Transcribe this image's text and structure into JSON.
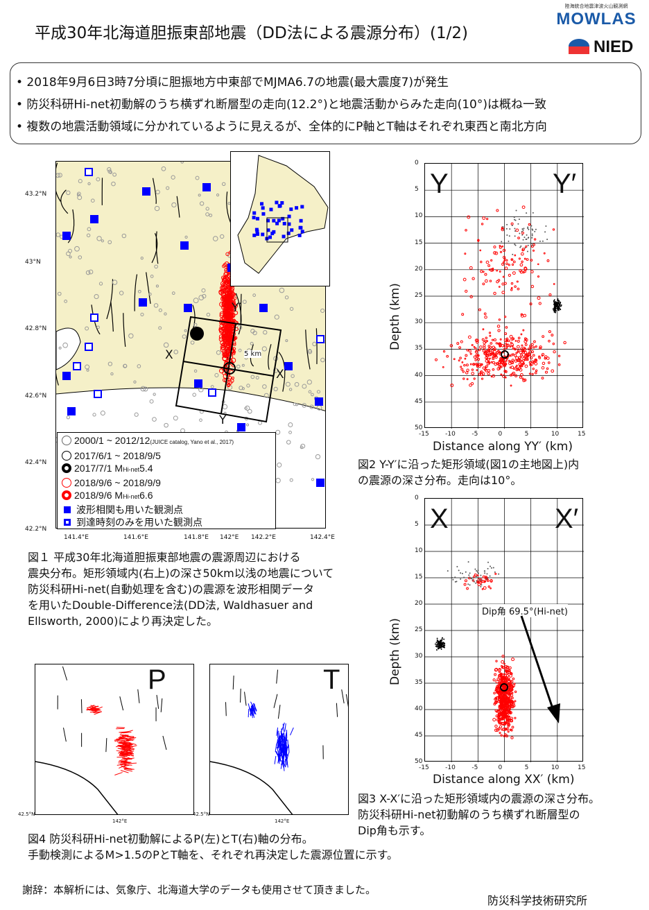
{
  "title": "平成30年北海道胆振東部地震（DD法による震源分布）(1/2)",
  "logo": {
    "org_jp": "陸海統合地震津波火山観測網",
    "brand": "MOWLAS",
    "nied": "NIED"
  },
  "summary": [
    "• 2018年9月6日3時7分頃に胆振地方中東部でMJMA6.7の地震(最大震度7)が発生",
    "• 防災科研Hi-net初動解のうち横ずれ断層型の走向(12.2°)と地震活動からみた走向(10°)は概ね一致",
    "• 複数の地震活動領域に分かれているように見えるが、全体的にP軸とT軸はそれぞれ東西と南北方向"
  ],
  "map": {
    "lat_ticks": [
      "43.2°N",
      "43°N",
      "42.8°N",
      "42.6°N",
      "42.4°N",
      "42.2°N"
    ],
    "lon_ticks": [
      "141.4°E",
      "141.6°E",
      "141.8°E",
      "142°E",
      "142.2°E",
      "142.4°E"
    ],
    "labels": {
      "x": "X",
      "xp": "X′",
      "y": "Y",
      "yp": "Y′",
      "scale": "5 km"
    },
    "legend": [
      {
        "text": "2000/1 ~ 2012/12",
        "note": "(JUICE catalog, Yano et al., 2017)"
      },
      {
        "text": "2017/6/1 ~ 2018/9/5"
      },
      {
        "text": "2017/7/1 M",
        "sub": "Hi-net",
        "tail": "5.4"
      },
      {
        "text": "2018/9/6 ~ 2018/9/9"
      },
      {
        "text": "2018/9/6 M",
        "sub": "Hi-net",
        "tail": "6.6"
      },
      {
        "text": "波形相関も用いた観測点"
      },
      {
        "text": "到達時刻のみを用いた観測点"
      }
    ]
  },
  "fig1_caption": [
    "図１ 平成30年北海道胆振東部地震の震源周辺における",
    "震央分布。矩形領域内(右上)の深さ50km以浅の地震について",
    "防災科研Hi-net(自動処理を含む)の震源を波形相関データ",
    "を用いたDouble-Difference法(DD法, Waldhasuer and",
    "Ellsworth, 2000)により再決定した。"
  ],
  "fig2": {
    "left": "Y",
    "right": "Y′",
    "ylabel": "Depth (km)",
    "xlabel": "Distance along YY′ (km)",
    "caption": [
      "図2 Y-Y′に沿った矩形領域(図1の主地図上)内",
      "の震源の深さ分布。走向は10°。"
    ]
  },
  "fig3": {
    "left": "X",
    "right": "X′",
    "ylabel": "Depth (km)",
    "xlabel": "Distance along XX′ (km)",
    "annotation": "Dip角 69.5°(Hi-net)",
    "caption": [
      "図3 X-X′に沿った矩形領域内の震源の深さ分布。",
      "防災科研Hi-net初動解のうち横ずれ断層型の",
      "Dip角も示す。"
    ]
  },
  "depth_ticks": [
    "0",
    "5",
    "10",
    "15",
    "20",
    "25",
    "30",
    "35",
    "40",
    "45",
    "50"
  ],
  "dist_ticks": [
    "-15",
    "-10",
    "-5",
    "0",
    "5",
    "10",
    "15"
  ],
  "fig4": {
    "p": "P",
    "t": "T",
    "lat": "42.5°N",
    "lon": "142°E",
    "caption": [
      "図4 防災科研Hi-net初動解によるP(左)とT(右)軸の分布。",
      "手動検測によるM>1.5のPとT軸を、それぞれ再決定した震源位置に示す。"
    ]
  },
  "ack": "謝辞：本解析には、気象庁、北海道大学のデータも使用させて頂きました。",
  "affiliation": "防災科学技術研究所",
  "colors": {
    "red": "#ff0000",
    "blue": "#0000ff",
    "land": "#f5f0c8"
  }
}
